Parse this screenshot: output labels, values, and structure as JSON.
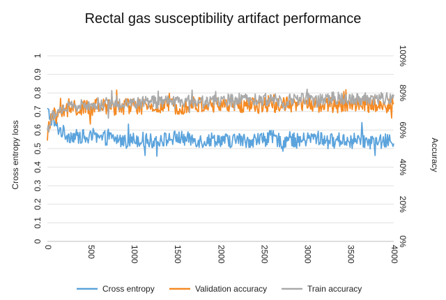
{
  "chart_data": {
    "type": "line",
    "title": "Rectal gas susceptibility artifact performance",
    "xlabel": "",
    "ylabel": "Cross entropy loss",
    "y2label": "Accuracy",
    "xlim": [
      0,
      4000
    ],
    "ylim": [
      0,
      1
    ],
    "y2lim": [
      0,
      1
    ],
    "x_ticks": [
      "0",
      "500",
      "1000",
      "1500",
      "2000",
      "2500",
      "3000",
      "3500",
      "4000"
    ],
    "y_ticks": [
      "0",
      "0.1",
      "0.2",
      "0.3",
      "0.4",
      "0.5",
      "0.6",
      "0.7",
      "0.8",
      "0.9",
      "1"
    ],
    "y2_ticks": [
      "0%",
      "20%",
      "40%",
      "60%",
      "80%",
      "100%"
    ],
    "grid": true,
    "legend_position": "bottom",
    "series": [
      {
        "name": "Cross entropy",
        "axis": "left",
        "color": "#5ba3dc",
        "x": [
          0,
          50,
          100,
          150,
          200,
          250,
          300,
          350,
          400,
          450,
          500,
          600,
          700,
          800,
          900,
          1000,
          1100,
          1200,
          1300,
          1400,
          1500,
          1600,
          1700,
          1800,
          1900,
          2000,
          2100,
          2200,
          2300,
          2400,
          2500,
          2600,
          2700,
          2800,
          2900,
          3000,
          3100,
          3200,
          3300,
          3400,
          3500,
          3600,
          3700,
          3800,
          3900,
          4000
        ],
        "values": [
          0.7,
          0.66,
          0.62,
          0.6,
          0.58,
          0.57,
          0.57,
          0.56,
          0.57,
          0.55,
          0.56,
          0.55,
          0.56,
          0.55,
          0.54,
          0.55,
          0.55,
          0.54,
          0.55,
          0.55,
          0.56,
          0.55,
          0.55,
          0.54,
          0.55,
          0.55,
          0.54,
          0.55,
          0.54,
          0.55,
          0.55,
          0.56,
          0.54,
          0.55,
          0.54,
          0.55,
          0.56,
          0.55,
          0.54,
          0.55,
          0.54,
          0.55,
          0.54,
          0.53,
          0.54,
          0.54
        ]
      },
      {
        "name": "Validation accuracy",
        "axis": "right",
        "color": "#f58a23",
        "x": [
          0,
          50,
          100,
          150,
          200,
          250,
          300,
          350,
          400,
          450,
          500,
          600,
          700,
          800,
          900,
          1000,
          1100,
          1200,
          1300,
          1400,
          1500,
          1600,
          1700,
          1800,
          1900,
          2000,
          2100,
          2200,
          2300,
          2400,
          2500,
          2600,
          2700,
          2800,
          2900,
          3000,
          3100,
          3200,
          3300,
          3400,
          3500,
          3600,
          3700,
          3800,
          3900,
          4000
        ],
        "values": [
          0.58,
          0.66,
          0.69,
          0.7,
          0.7,
          0.71,
          0.71,
          0.72,
          0.71,
          0.72,
          0.72,
          0.72,
          0.73,
          0.72,
          0.73,
          0.73,
          0.72,
          0.73,
          0.72,
          0.73,
          0.73,
          0.73,
          0.74,
          0.73,
          0.73,
          0.74,
          0.73,
          0.73,
          0.74,
          0.73,
          0.74,
          0.74,
          0.73,
          0.74,
          0.73,
          0.74,
          0.74,
          0.74,
          0.73,
          0.74,
          0.74,
          0.74,
          0.73,
          0.74,
          0.73,
          0.74
        ]
      },
      {
        "name": "Train accuracy",
        "axis": "right",
        "color": "#a9a9a9",
        "x": [
          0,
          50,
          100,
          150,
          200,
          250,
          300,
          350,
          400,
          450,
          500,
          600,
          700,
          800,
          900,
          1000,
          1100,
          1200,
          1300,
          1400,
          1500,
          1600,
          1700,
          1800,
          1900,
          2000,
          2100,
          2200,
          2300,
          2400,
          2500,
          2600,
          2700,
          2800,
          2900,
          3000,
          3100,
          3200,
          3300,
          3400,
          3500,
          3600,
          3700,
          3800,
          3900,
          4000
        ],
        "values": [
          0.6,
          0.66,
          0.7,
          0.71,
          0.72,
          0.72,
          0.73,
          0.73,
          0.73,
          0.73,
          0.74,
          0.74,
          0.74,
          0.74,
          0.75,
          0.74,
          0.75,
          0.75,
          0.75,
          0.75,
          0.75,
          0.75,
          0.76,
          0.75,
          0.76,
          0.76,
          0.76,
          0.76,
          0.76,
          0.76,
          0.76,
          0.77,
          0.76,
          0.76,
          0.77,
          0.77,
          0.76,
          0.77,
          0.77,
          0.77,
          0.77,
          0.77,
          0.77,
          0.77,
          0.77,
          0.77
        ]
      }
    ]
  }
}
